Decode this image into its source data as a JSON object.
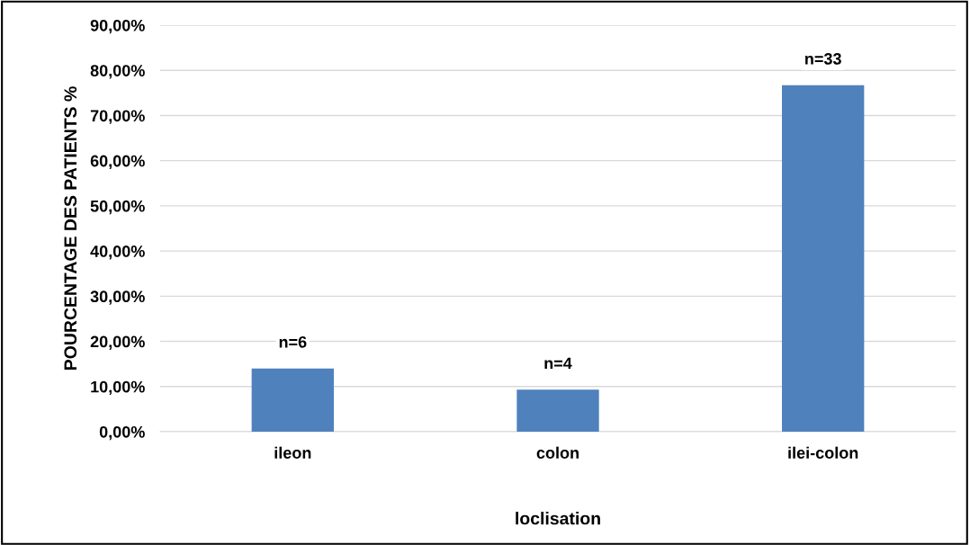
{
  "chart_data": {
    "type": "bar",
    "xlabel": "loclisation",
    "ylabel": "POURCENTAGE DES PATIENTS %",
    "categories": [
      "ileon",
      "colon",
      "ilei-colon"
    ],
    "values": [
      14,
      9.3,
      76.7
    ],
    "annotations": [
      {
        "text": "n=6",
        "x": "ileon",
        "y": 14
      },
      {
        "text": "n=4",
        "x": "colon",
        "y": 9.3
      },
      {
        "text": "n=33",
        "x": "ilei-colon",
        "y": 76.7
      }
    ],
    "color": "#4f81bd",
    "ylim": [
      0,
      90
    ],
    "yticks": [
      {
        "value": 0,
        "label": "0,00%"
      },
      {
        "value": 10,
        "label": "10,00%"
      },
      {
        "value": 20,
        "label": "20,00%"
      },
      {
        "value": 30,
        "label": "30,00%"
      },
      {
        "value": 40,
        "label": "40,00%"
      },
      {
        "value": 50,
        "label": "50,00%"
      },
      {
        "value": 60,
        "label": "60,00%"
      },
      {
        "value": 70,
        "label": "70,00%"
      },
      {
        "value": 80,
        "label": "80,00%"
      },
      {
        "value": 90,
        "label": "90,00%"
      }
    ],
    "grid": "y",
    "legend": false
  }
}
